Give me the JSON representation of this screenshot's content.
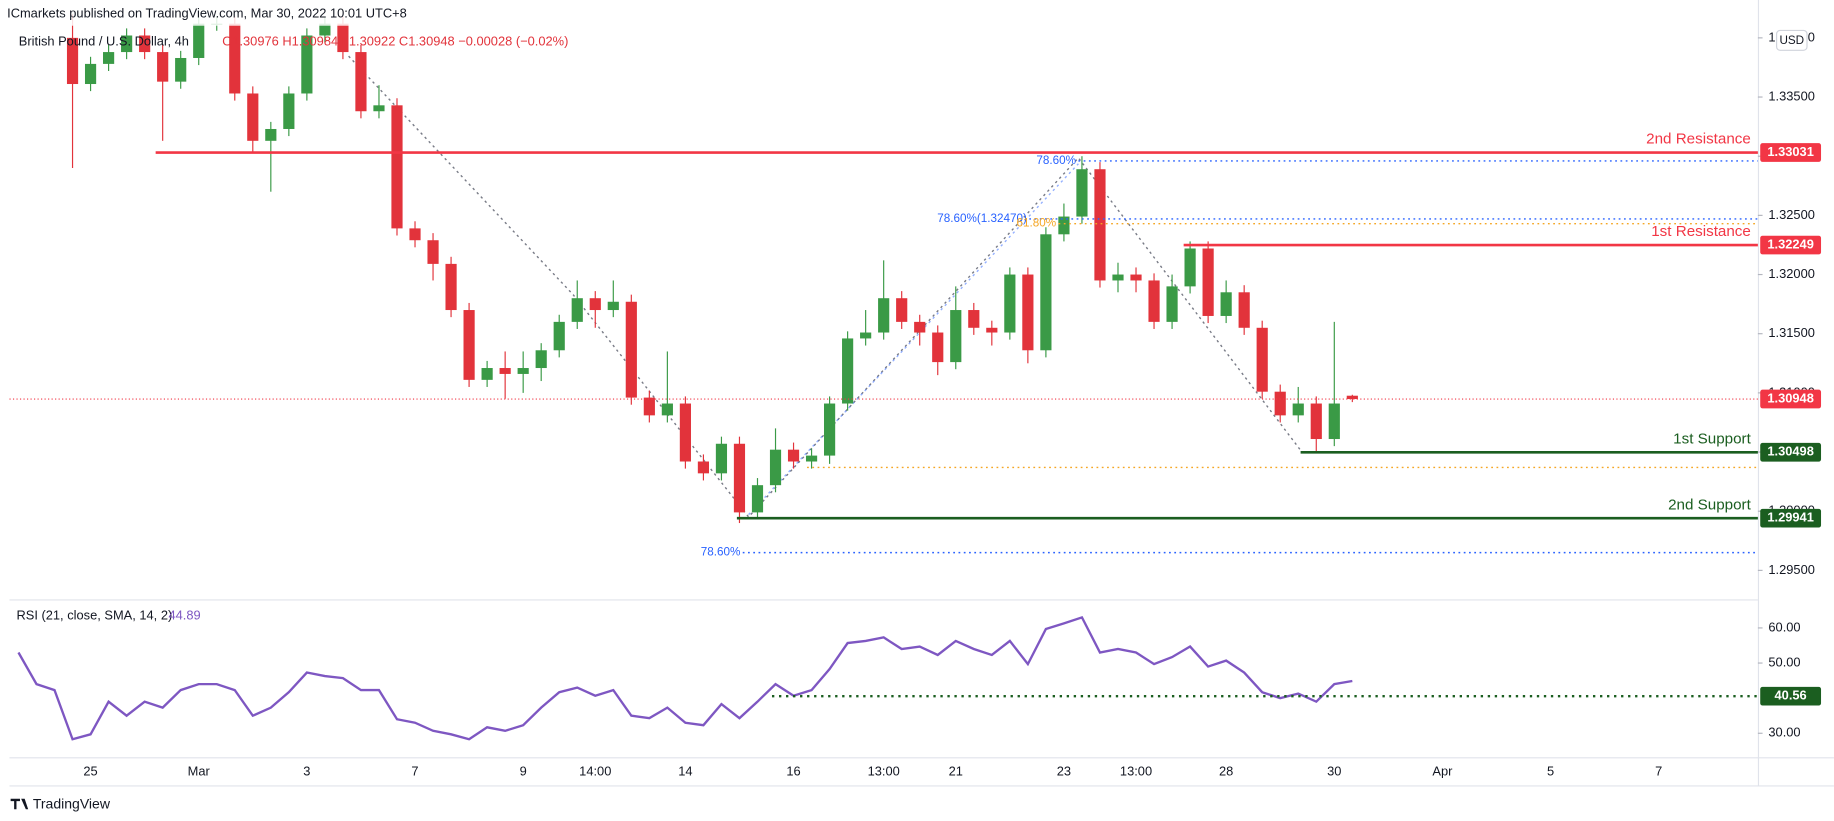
{
  "header": {
    "publisher": "ICmarkets published on TradingView.com, Mar 30, 2022 10:01 UTC+8",
    "symbol": "British Pound / U.S. Dollar, 4h",
    "ohlc": "O1.30976 H1.30984 L1.30922 C1.30948 −0.00028 (−0.02%)",
    "currency": "USD",
    "footer": "TradingView"
  },
  "chart_data": {
    "type": "candlestick",
    "up_color": "#3a9a46",
    "down_color": "#e2333b",
    "ylim": [
      1.2925,
      1.3432
    ],
    "yticks": [
      {
        "value": 1.295,
        "label": "1.29500"
      },
      {
        "value": 1.3,
        "label": "1.30000"
      },
      {
        "value": 1.305,
        "label": "1.30500"
      },
      {
        "value": 1.31,
        "label": "1.31000"
      },
      {
        "value": 1.315,
        "label": "1.31500"
      },
      {
        "value": 1.32,
        "label": "1.32000"
      },
      {
        "value": 1.325,
        "label": "1.32500"
      },
      {
        "value": 1.33,
        "label": "1.33000"
      },
      {
        "value": 1.335,
        "label": "1.33500"
      },
      {
        "value": 1.34,
        "label": "1.34000"
      }
    ],
    "grid": false,
    "categories": [
      null,
      null,
      null,
      null,
      "25",
      null,
      null,
      null,
      null,
      null,
      "Mar",
      null,
      null,
      null,
      null,
      null,
      "3",
      null,
      null,
      null,
      null,
      null,
      "7",
      null,
      null,
      null,
      null,
      null,
      "9",
      null,
      null,
      null,
      "14:00",
      null,
      null,
      null,
      null,
      "14",
      null,
      null,
      null,
      null,
      null,
      "16",
      null,
      null,
      null,
      null,
      "13:00",
      null,
      null,
      null,
      "21",
      null,
      null,
      null,
      null,
      null,
      "23",
      null,
      null,
      null,
      "13:00",
      null,
      null,
      null,
      null,
      "28",
      null,
      null,
      null,
      null,
      null,
      "30",
      null,
      null,
      null,
      null,
      null,
      "Apr",
      null,
      null,
      null,
      null,
      null,
      "5",
      null,
      null,
      null,
      null,
      null,
      "7",
      null,
      null,
      null,
      null,
      null
    ],
    "open": [
      null,
      null,
      null,
      1.34,
      1.3361,
      1.3378,
      1.3388,
      1.3402,
      1.3388,
      1.3363,
      1.3383,
      1.3412,
      1.3412,
      1.3353,
      1.3313,
      1.3323,
      1.3353,
      1.3402,
      1.3412,
      1.3388,
      1.3338,
      1.3343,
      1.3239,
      1.3229,
      1.3209,
      1.317,
      1.3111,
      1.3121,
      1.3116,
      1.3121,
      1.3136,
      1.316,
      1.318,
      1.317,
      1.3177,
      1.3096,
      1.3081,
      1.3091,
      1.3042,
      1.3032,
      1.3057,
      1.2999,
      1.3022,
      1.3052,
      1.3042,
      1.3047,
      1.3091,
      1.3146,
      1.3151,
      1.318,
      1.316,
      1.3151,
      1.3126,
      1.317,
      1.3155,
      1.3151,
      1.32,
      1.3136,
      1.3234,
      1.3249,
      1.3289,
      1.3195,
      1.32,
      1.3195,
      1.316,
      1.319,
      1.3222,
      1.3165,
      1.3185,
      1.3155,
      1.3101,
      1.3081,
      1.3091,
      1.3061,
      1.30976,
      null,
      null,
      null,
      null,
      null,
      null,
      null,
      null,
      null,
      null,
      null,
      null,
      null,
      null,
      null,
      null,
      null,
      null,
      null,
      null,
      null,
      null
    ],
    "high": [
      null,
      null,
      null,
      1.342,
      1.3384,
      1.3394,
      1.3408,
      1.3408,
      1.3394,
      1.3389,
      1.3418,
      1.3418,
      1.3418,
      1.3359,
      1.3329,
      1.3359,
      1.3408,
      1.3418,
      1.3418,
      1.3394,
      1.336,
      1.3349,
      1.3245,
      1.3235,
      1.3215,
      1.3176,
      1.3127,
      1.3135,
      1.3135,
      1.3142,
      1.3166,
      1.3195,
      1.3186,
      1.3195,
      1.3183,
      1.3102,
      1.3135,
      1.3097,
      1.3048,
      1.3063,
      1.3063,
      1.3028,
      1.307,
      1.3058,
      1.3053,
      1.3097,
      1.3152,
      1.317,
      1.3212,
      1.3186,
      1.3166,
      1.3157,
      1.319,
      1.3176,
      1.3161,
      1.3206,
      1.3206,
      1.324,
      1.326,
      1.33,
      1.3295,
      1.321,
      1.3206,
      1.3201,
      1.32,
      1.3228,
      1.3228,
      1.3195,
      1.3191,
      1.3161,
      1.3107,
      1.3105,
      1.3097,
      1.316,
      1.30984,
      null,
      null,
      null,
      null,
      null,
      null,
      null,
      null,
      null,
      null,
      null,
      null,
      null,
      null,
      null,
      null,
      null,
      null,
      null,
      null,
      null,
      null
    ],
    "low": [
      null,
      null,
      null,
      1.329,
      1.3355,
      1.3372,
      1.3382,
      1.3382,
      1.3313,
      1.3357,
      1.3377,
      1.3406,
      1.3347,
      1.3303,
      1.327,
      1.3317,
      1.3347,
      1.3396,
      1.3382,
      1.3332,
      1.3332,
      1.3233,
      1.3223,
      1.3195,
      1.3164,
      1.3105,
      1.3105,
      1.3095,
      1.31,
      1.311,
      1.313,
      1.3154,
      1.3155,
      1.3164,
      1.309,
      1.3075,
      1.3075,
      1.3036,
      1.3026,
      1.3026,
      1.299,
      1.2993,
      1.3016,
      1.3036,
      1.3036,
      1.304,
      1.3085,
      1.314,
      1.3145,
      1.3154,
      1.314,
      1.3115,
      1.312,
      1.3149,
      1.314,
      1.3145,
      1.3125,
      1.313,
      1.3228,
      1.3243,
      1.3189,
      1.3185,
      1.3185,
      1.3154,
      1.3154,
      1.3184,
      1.3159,
      1.3159,
      1.3149,
      1.3095,
      1.3075,
      1.3075,
      1.305,
      1.3055,
      1.30922,
      null,
      null,
      null,
      null,
      null,
      null,
      null,
      null,
      null,
      null,
      null,
      null,
      null,
      null,
      null,
      null,
      null,
      null,
      null,
      null,
      null,
      null
    ],
    "close": [
      null,
      null,
      null,
      1.3361,
      1.3378,
      1.3388,
      1.3402,
      1.3388,
      1.3363,
      1.3383,
      1.3412,
      1.3412,
      1.3353,
      1.3313,
      1.3323,
      1.3353,
      1.3402,
      1.3412,
      1.3388,
      1.3338,
      1.3343,
      1.3239,
      1.3229,
      1.3209,
      1.317,
      1.3111,
      1.3121,
      1.3116,
      1.3121,
      1.3136,
      1.316,
      1.318,
      1.317,
      1.3177,
      1.3096,
      1.3081,
      1.3091,
      1.3042,
      1.3032,
      1.3057,
      1.2999,
      1.3022,
      1.3052,
      1.3042,
      1.3047,
      1.3091,
      1.3146,
      1.3151,
      1.318,
      1.316,
      1.3151,
      1.3126,
      1.317,
      1.3155,
      1.3151,
      1.32,
      1.3136,
      1.3234,
      1.3249,
      1.3289,
      1.3195,
      1.32,
      1.3195,
      1.316,
      1.319,
      1.3222,
      1.3165,
      1.3185,
      1.3155,
      1.3101,
      1.3081,
      1.3091,
      1.3061,
      1.3091,
      1.30948,
      null,
      null,
      null,
      null,
      null,
      null,
      null,
      null,
      null,
      null,
      null,
      null,
      null,
      null,
      null,
      null,
      null,
      null,
      null,
      null,
      null,
      null
    ],
    "last_price_color": "#f23645",
    "levels": [
      {
        "label": "2nd Resistance",
        "value": 1.33031,
        "color": "#f23645"
      },
      {
        "label": "1st Resistance",
        "value": 1.32249,
        "color": "#f23645"
      },
      {
        "label": "1st Support",
        "value": 1.30498,
        "color": "#1b5e20"
      },
      {
        "label": "2nd Support",
        "value": 1.29941,
        "color": "#1b5e20"
      }
    ],
    "fib_lines": [
      {
        "label": "78.60%",
        "value": 1.3296,
        "color": "#2962ff"
      },
      {
        "label": "78.60%(1.32470)",
        "value": 1.3247,
        "color": "#2962ff"
      },
      {
        "label": "61.80%",
        "value": 1.3243,
        "color": "#f5a623"
      },
      {
        "value": 1.3037,
        "color": "#f5a623"
      },
      {
        "label": "78.60%",
        "value": 1.2965,
        "color": "#2962ff"
      }
    ],
    "rsi": {
      "label": "RSI (21, close, SMA, 14, 2)",
      "color": "#7e57c2",
      "ylim": [
        23,
        67.3
      ],
      "yticks": [
        {
          "value": 30,
          "label": "30.00"
        },
        {
          "value": 50,
          "label": "50.00"
        },
        {
          "value": 60,
          "label": "60.00"
        }
      ],
      "level": 40.56,
      "level_color": "#1b5e20",
      "values": [
        53,
        44,
        42.3,
        28.3,
        29.7,
        39,
        35,
        39,
        37.3,
        42.3,
        44,
        44,
        42.3,
        35,
        37.3,
        41.7,
        47.3,
        46.3,
        45.7,
        42.3,
        42.3,
        34,
        33,
        30.7,
        29.7,
        28.3,
        31.7,
        30.7,
        32.3,
        37.3,
        41.7,
        43,
        40.7,
        42.3,
        35,
        34.3,
        37.3,
        33,
        32.3,
        38.3,
        34.3,
        39,
        44,
        40.7,
        42.3,
        48.3,
        55.7,
        56.3,
        57.3,
        54,
        54.7,
        52.3,
        56.3,
        54,
        52.3,
        56.3,
        49.7,
        59.7,
        61.3,
        63,
        53,
        54,
        53,
        49.7,
        51.7,
        54.7,
        49,
        50.7,
        47.3,
        41.7,
        40,
        41.3,
        39,
        44,
        44.89,
        null,
        null,
        null,
        null,
        null,
        null,
        null,
        null,
        null,
        null,
        null,
        null,
        null,
        null,
        null,
        null,
        null,
        null,
        null,
        null,
        null,
        null
      ]
    }
  }
}
